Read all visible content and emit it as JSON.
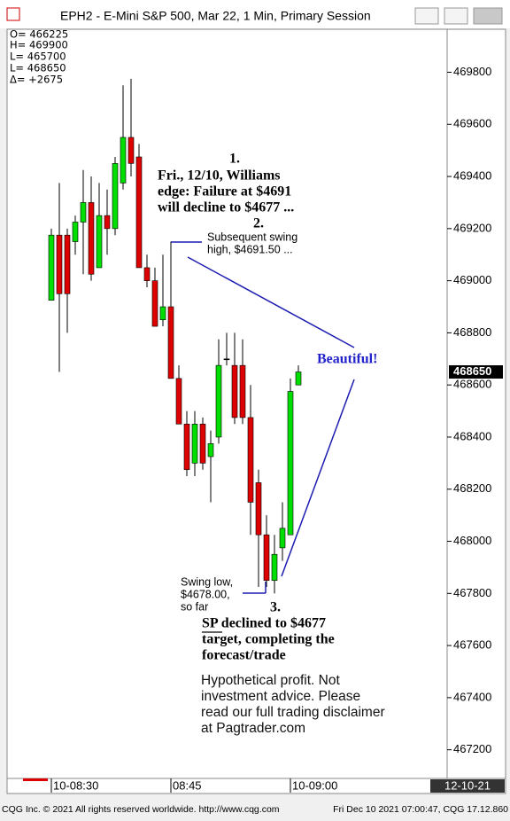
{
  "window": {
    "title": "EPH2 - E-Mini S&P 500, Mar 22, 1 Min, Primary Session"
  },
  "stats": [
    "O= 466225",
    "H= 469900",
    "L= 465700",
    "L= 468650",
    "Δ=   +2675"
  ],
  "chart_data": {
    "type": "candlestick",
    "categories": [
      "10-08:30",
      null,
      null,
      null,
      null,
      null,
      null,
      null,
      null,
      null,
      null,
      null,
      null,
      null,
      null,
      "08:45",
      null,
      null,
      null,
      null,
      null,
      null,
      null,
      null,
      null,
      null,
      null,
      null,
      null,
      null,
      "10-09:00",
      null
    ],
    "open": [
      468925,
      469175,
      469175,
      469150,
      469225,
      469300,
      469050,
      469250,
      469200,
      469375,
      469550,
      469475,
      469050,
      469000,
      468850,
      468900,
      468625,
      468450,
      468300,
      468450,
      468325,
      468400,
      468700,
      468675,
      468675,
      468475,
      468225,
      468025,
      467850,
      467975,
      468025,
      468600
    ],
    "high": [
      469200,
      469375,
      469200,
      469250,
      469425,
      469400,
      469375,
      469350,
      469475,
      469750,
      469775,
      469525,
      469100,
      469050,
      469100,
      469150,
      468675,
      468500,
      468500,
      468475,
      468425,
      468775,
      468800,
      468800,
      468775,
      468600,
      468275,
      468100,
      468025,
      468150,
      468625,
      468675
    ],
    "low": [
      468925,
      468650,
      468800,
      469100,
      469025,
      469000,
      469050,
      469100,
      469175,
      469350,
      469400,
      469050,
      468975,
      468825,
      468825,
      468625,
      468450,
      468250,
      468250,
      468275,
      468150,
      468375,
      468675,
      468450,
      468450,
      468025,
      467825,
      467825,
      467800,
      467925,
      468025,
      468600
    ],
    "close": [
      469175,
      468950,
      468950,
      469225,
      469300,
      469025,
      469250,
      469200,
      469450,
      469550,
      469450,
      469050,
      469000,
      468825,
      468900,
      468625,
      468450,
      468275,
      468450,
      468300,
      468375,
      468675,
      468700,
      468475,
      468475,
      468150,
      468025,
      467850,
      467950,
      468050,
      468575,
      468650
    ],
    "up_color": "#00dd00",
    "down_color": "#dd0000",
    "ylim": [
      467090,
      469965
    ],
    "yticks": [
      467200,
      467400,
      467600,
      467800,
      468000,
      468200,
      468400,
      468600,
      468800,
      469000,
      469200,
      469400,
      469600,
      469800
    ],
    "last_value": 468650,
    "x_end_label": "12-10-21",
    "annotations": {
      "forecast": [
        "1.",
        "Fri., 12/10, Williams",
        "edge: Failure at $4691",
        "will decline to $4677 ...",
        "2."
      ],
      "swing_high": [
        "Subsequent swing",
        "high, $4691.50 ..."
      ],
      "beautiful": "Beautiful!",
      "swing_low": [
        "Swing low,",
        "$4678.00,",
        "so far"
      ],
      "result": [
        "3.",
        "SP declined to $4677",
        "target, completing the",
        "forecast/trade"
      ],
      "disclaimer": [
        "Hypothetical profit. Not",
        "investment advice. Please",
        "read our full trading disclaimer",
        "at Pagtrader.com"
      ]
    }
  },
  "footer": {
    "left": "CQG Inc. © 2021 All rights reserved worldwide. http://www.cqg.com",
    "right": "Fri Dec 10 2021 07:00:47, CQG 17.12.860"
  }
}
